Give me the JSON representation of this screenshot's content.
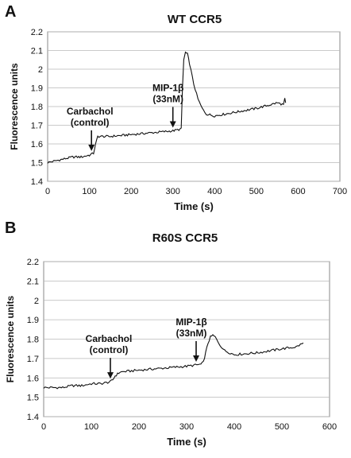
{
  "chart_data": [
    {
      "panel": "A",
      "type": "line",
      "title": "WT CCR5",
      "xlabel": "Time (s)",
      "ylabel": "Fluorescence units",
      "xlim": [
        0,
        700
      ],
      "ylim": [
        1.4,
        2.2
      ],
      "xticks": [
        0,
        100,
        200,
        300,
        400,
        500,
        600,
        700
      ],
      "yticks": [
        1.4,
        1.5,
        1.6,
        1.7,
        1.8,
        1.9,
        2,
        2.1,
        2.2
      ],
      "grid": true,
      "x": [
        0,
        20,
        40,
        60,
        80,
        100,
        110,
        115,
        120,
        150,
        200,
        250,
        300,
        320,
        323,
        326,
        330,
        335,
        340,
        350,
        360,
        370,
        380,
        400,
        450,
        500,
        550,
        565,
        568,
        570
      ],
      "y": [
        1.5,
        1.51,
        1.52,
        1.53,
        1.53,
        1.54,
        1.55,
        1.6,
        1.64,
        1.64,
        1.65,
        1.66,
        1.67,
        1.68,
        1.9,
        2.05,
        2.09,
        2.08,
        2.03,
        1.92,
        1.84,
        1.79,
        1.76,
        1.75,
        1.77,
        1.79,
        1.82,
        1.81,
        1.84,
        1.82
      ],
      "annotations": [
        {
          "lines": [
            "Carbachol",
            "(control)"
          ],
          "x": 105
        },
        {
          "lines": [
            "MIP-1β",
            "(33nM)"
          ],
          "x": 300
        }
      ]
    },
    {
      "panel": "B",
      "type": "line",
      "title": "R60S  CCR5",
      "xlabel": "Time (s)",
      "ylabel": "Fluorescence units",
      "xlim": [
        0,
        600
      ],
      "ylim": [
        1.4,
        2.2
      ],
      "xticks": [
        0,
        100,
        200,
        300,
        400,
        500,
        600
      ],
      "yticks": [
        1.4,
        1.5,
        1.6,
        1.7,
        1.8,
        1.9,
        2,
        2.1,
        2.2
      ],
      "grid": true,
      "x": [
        0,
        20,
        40,
        60,
        80,
        100,
        120,
        140,
        145,
        150,
        155,
        160,
        200,
        250,
        300,
        330,
        335,
        340,
        345,
        350,
        355,
        360,
        370,
        380,
        400,
        450,
        500,
        530,
        545
      ],
      "y": [
        1.55,
        1.55,
        1.55,
        1.56,
        1.56,
        1.57,
        1.57,
        1.58,
        1.59,
        1.61,
        1.62,
        1.63,
        1.64,
        1.65,
        1.66,
        1.67,
        1.68,
        1.73,
        1.78,
        1.81,
        1.82,
        1.81,
        1.77,
        1.74,
        1.72,
        1.73,
        1.75,
        1.76,
        1.78
      ],
      "annotations": [
        {
          "lines": [
            "Carbachol",
            "(control)"
          ],
          "x": 140
        },
        {
          "lines": [
            "MIP-1β",
            "(33nM)"
          ],
          "x": 320
        }
      ]
    }
  ]
}
